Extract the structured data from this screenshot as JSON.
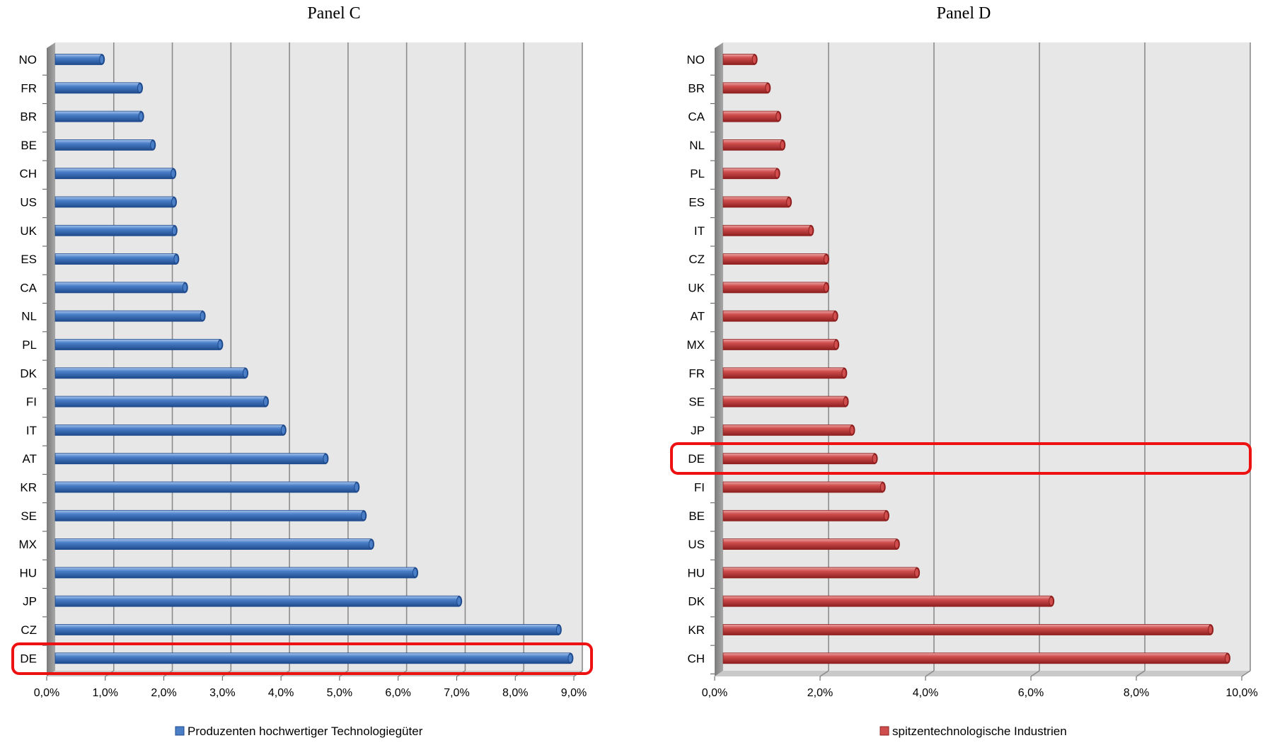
{
  "chart_data": [
    {
      "type": "bar",
      "orientation": "horizontal",
      "title": "Panel C",
      "categories": [
        "NO",
        "FR",
        "BR",
        "BE",
        "CH",
        "US",
        "UK",
        "ES",
        "CA",
        "NL",
        "PL",
        "DK",
        "FI",
        "IT",
        "AT",
        "KR",
        "SE",
        "MX",
        "HU",
        "JP",
        "CZ",
        "DE"
      ],
      "series": [
        {
          "name": "Produzenten hochwertiger Technologiegüter",
          "values": [
            0.8,
            1.45,
            1.47,
            1.67,
            2.02,
            2.03,
            2.04,
            2.07,
            2.22,
            2.52,
            2.82,
            3.25,
            3.6,
            3.9,
            4.62,
            5.15,
            5.27,
            5.4,
            6.15,
            6.9,
            8.6,
            8.8
          ]
        }
      ],
      "xlim": [
        0,
        9
      ],
      "x_ticks": [
        "0,0%",
        "1,0%",
        "2,0%",
        "3,0%",
        "4,0%",
        "5,0%",
        "6,0%",
        "7,0%",
        "8,0%",
        "9,0%"
      ],
      "grid": true,
      "legend_position": "bottom",
      "highlight": "DE",
      "colors": {
        "bar": "#4a7fc8",
        "bar_dark": "#1f4a8c",
        "bar_light": "#a9c6ee",
        "highlight": "#ee1111",
        "plot_bg": "#e7e7e7",
        "grid": "#8c8c8c"
      }
    },
    {
      "type": "bar",
      "orientation": "horizontal",
      "title": "Panel D",
      "categories": [
        "NO",
        "BR",
        "CA",
        "NL",
        "PL",
        "ES",
        "IT",
        "CZ",
        "UK",
        "AT",
        "MX",
        "FR",
        "SE",
        "JP",
        "DE",
        "FI",
        "BE",
        "US",
        "HU",
        "DK",
        "KR",
        "CH"
      ],
      "series": [
        {
          "name": "spitzentechnologische Industrien",
          "values": [
            0.6,
            0.85,
            1.05,
            1.13,
            1.03,
            1.25,
            1.67,
            1.96,
            1.96,
            2.13,
            2.15,
            2.3,
            2.33,
            2.45,
            2.88,
            3.03,
            3.1,
            3.3,
            3.68,
            6.23,
            9.25,
            9.57
          ]
        }
      ],
      "xlim": [
        0,
        10
      ],
      "x_ticks": [
        "0,0%",
        "2,0%",
        "4,0%",
        "6,0%",
        "8,0%",
        "10,0%"
      ],
      "grid": true,
      "legend_position": "bottom",
      "highlight": "DE",
      "colors": {
        "bar": "#cf4d4d",
        "bar_dark": "#8e1f1f",
        "bar_light": "#eda6a6",
        "highlight": "#ee1111",
        "plot_bg": "#e7e7e7",
        "grid": "#8c8c8c"
      }
    }
  ]
}
